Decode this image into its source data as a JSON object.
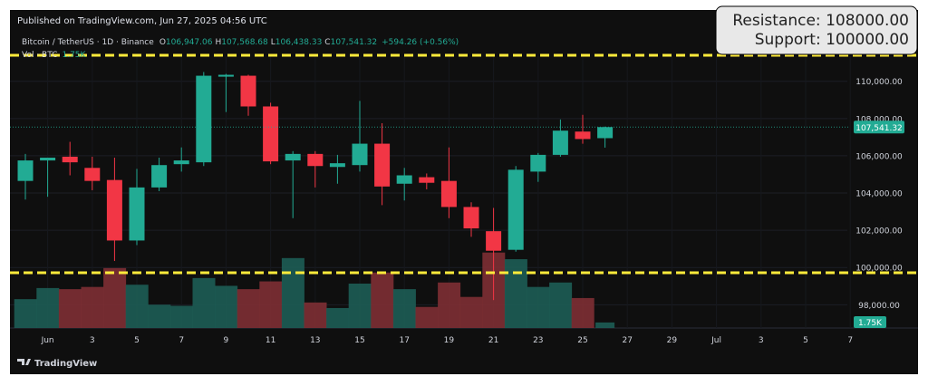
{
  "header": {
    "published": "Published on TradingView.com, Jun 27, 2025 04:56 UTC",
    "symbol": "Bitcoin / TetherUS · 1D · Binance",
    "o_label": "O",
    "o_value": "106,947.06",
    "h_label": "H",
    "h_value": "107,568.68",
    "l_label": "L",
    "l_value": "106,438.33",
    "c_label": "C",
    "c_value": "107,541.32",
    "change": "+594.26 (+0.56%)",
    "vol_label": "Vol · BTC",
    "vol_value": "1.75K"
  },
  "annotation": {
    "resistance": "Resistance: 108000.00",
    "support": "Support: 100000.00"
  },
  "footer": {
    "logo_text": "TradingView"
  },
  "colors": {
    "up": "#22ab94",
    "down": "#f23645",
    "up_volume": "#1d5d55",
    "down_volume": "#7e2f34",
    "background": "#0f0f0f",
    "level_line": "#ffeb3b",
    "text": "#d1d4dc"
  },
  "chart_data": {
    "type": "candlestick",
    "x_labels": [
      "Jun",
      "3",
      "5",
      "7",
      "9",
      "11",
      "13",
      "15",
      "17",
      "19",
      "21",
      "23",
      "25",
      "27",
      "29",
      "Jul",
      "3",
      "5",
      "7"
    ],
    "price_ticks": [
      "110,000.00",
      "108,000.00",
      "106,000.00",
      "104,000.00",
      "102,000.00",
      "100,000.00",
      "98,000.00"
    ],
    "price_ticks_values": [
      110000,
      108000,
      106000,
      104000,
      102000,
      100000,
      98000
    ],
    "ylim": [
      96750,
      111350
    ],
    "last_price": 107541.32,
    "last_price_label": "107,541.32",
    "volume_label": "1.75K",
    "levels": {
      "resistance": 108000,
      "support": 100000
    },
    "candles": [
      {
        "date": "May 31",
        "o": 104650,
        "h": 106100,
        "l": 103650,
        "c": 105750,
        "v": 1.3
      },
      {
        "date": "Jun 1",
        "o": 105750,
        "h": 105850,
        "l": 103800,
        "c": 105900,
        "v": 1.8
      },
      {
        "date": "Jun 2",
        "o": 105950,
        "h": 106750,
        "l": 104950,
        "c": 105650,
        "v": 1.75
      },
      {
        "date": "Jun 3",
        "o": 105350,
        "h": 105950,
        "l": 104150,
        "c": 104650,
        "v": 1.85
      },
      {
        "date": "Jun 4",
        "o": 104700,
        "h": 105900,
        "l": 100350,
        "c": 101450,
        "v": 2.7
      },
      {
        "date": "Jun 5",
        "o": 101450,
        "h": 105300,
        "l": 101200,
        "c": 104300,
        "v": 1.95
      },
      {
        "date": "Jun 6",
        "o": 104300,
        "h": 105900,
        "l": 104100,
        "c": 105500,
        "v": 1.05
      },
      {
        "date": "Jun 7",
        "o": 105550,
        "h": 106450,
        "l": 105150,
        "c": 105750,
        "v": 1.0
      },
      {
        "date": "Jun 8",
        "o": 105650,
        "h": 110500,
        "l": 105450,
        "c": 110300,
        "v": 2.25
      },
      {
        "date": "Jun 9",
        "o": 110250,
        "h": 110400,
        "l": 108350,
        "c": 110350,
        "v": 1.9
      },
      {
        "date": "Jun 10",
        "o": 110300,
        "h": 110350,
        "l": 108150,
        "c": 108650,
        "v": 1.75
      },
      {
        "date": "Jun 11",
        "o": 108650,
        "h": 108850,
        "l": 105550,
        "c": 105700,
        "v": 2.1
      },
      {
        "date": "Jun 12",
        "o": 105750,
        "h": 106250,
        "l": 102650,
        "c": 106100,
        "v": 3.15
      },
      {
        "date": "Jun 13",
        "o": 106100,
        "h": 106250,
        "l": 104300,
        "c": 105450,
        "v": 1.15
      },
      {
        "date": "Jun 14",
        "o": 105400,
        "h": 106050,
        "l": 104500,
        "c": 105600,
        "v": 0.9
      },
      {
        "date": "Jun 15",
        "o": 105500,
        "h": 108950,
        "l": 105150,
        "c": 106650,
        "v": 2.0
      },
      {
        "date": "Jun 16",
        "o": 106650,
        "h": 107750,
        "l": 103350,
        "c": 104350,
        "v": 2.5
      },
      {
        "date": "Jun 17",
        "o": 104500,
        "h": 105350,
        "l": 103600,
        "c": 104950,
        "v": 1.75
      },
      {
        "date": "Jun 18",
        "o": 104850,
        "h": 105050,
        "l": 104200,
        "c": 104550,
        "v": 0.95
      },
      {
        "date": "Jun 19",
        "o": 104650,
        "h": 106450,
        "l": 102650,
        "c": 103250,
        "v": 2.05
      },
      {
        "date": "Jun 20",
        "o": 103250,
        "h": 103500,
        "l": 101650,
        "c": 102100,
        "v": 1.4
      },
      {
        "date": "Jun 21",
        "o": 101950,
        "h": 103200,
        "l": 98250,
        "c": 100900,
        "v": 3.4
      },
      {
        "date": "Jun 22",
        "o": 100950,
        "h": 105450,
        "l": 100850,
        "c": 105250,
        "v": 3.1
      },
      {
        "date": "Jun 23",
        "o": 105150,
        "h": 106150,
        "l": 104600,
        "c": 106050,
        "v": 1.85
      },
      {
        "date": "Jun 24",
        "o": 106050,
        "h": 107950,
        "l": 105950,
        "c": 107350,
        "v": 2.05
      },
      {
        "date": "Jun 25",
        "o": 107300,
        "h": 108200,
        "l": 106650,
        "c": 106900,
        "v": 1.35
      },
      {
        "date": "Jun 26",
        "o": 106947.06,
        "h": 107568.68,
        "l": 106438.33,
        "c": 107541.32,
        "v": 0.25
      }
    ]
  }
}
